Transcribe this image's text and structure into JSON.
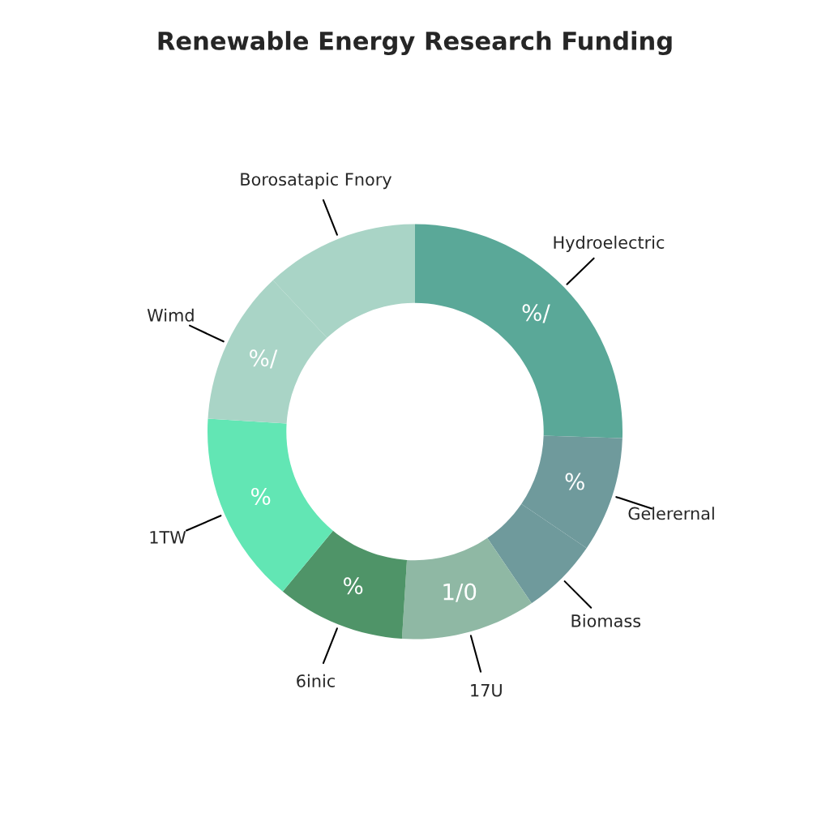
{
  "chart_data": {
    "type": "donut",
    "title": "Renewable Energy Research Funding",
    "categories": [
      "Hydroelectric",
      "Gelerernal",
      "Biomass",
      "17U",
      "6inic",
      "1TW",
      "Wimd",
      "Borosatapic Fnory"
    ],
    "values": [
      25.5,
      9,
      6,
      10.5,
      10,
      15,
      12,
      12
    ],
    "colors": [
      "#5aa898",
      "#6f9a9c",
      "#6f9a9c",
      "#8fb8a4",
      "#4f9468",
      "#62e6b4",
      "#a9d4c6",
      "#a9d4c6"
    ],
    "value_labels": [
      "%/",
      "%",
      null,
      "1/0",
      "%",
      "%",
      "%/",
      null
    ],
    "legend": false
  }
}
